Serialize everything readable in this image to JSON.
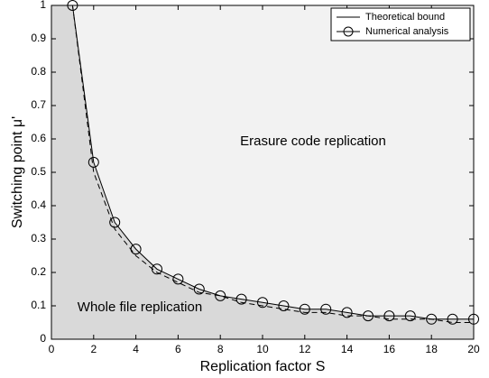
{
  "chart_data": {
    "type": "line",
    "x_label": "Replication factor S",
    "y_label": "Switching point μ'",
    "x": [
      1,
      2,
      3,
      4,
      5,
      6,
      7,
      8,
      9,
      10,
      11,
      12,
      13,
      14,
      15,
      16,
      17,
      18,
      19,
      20
    ],
    "series": [
      {
        "name": "Theoretical bound",
        "color": "#000000",
        "linestyle": "dashed",
        "marker": "none",
        "values": [
          1,
          0.5,
          0.33,
          0.25,
          0.2,
          0.17,
          0.14,
          0.13,
          0.11,
          0.1,
          0.09,
          0.08,
          0.08,
          0.07,
          0.07,
          0.06,
          0.06,
          0.06,
          0.05,
          0.05
        ]
      },
      {
        "name": "Numerical analysis",
        "color": "#000000",
        "linestyle": "solid",
        "marker": "circle",
        "values": [
          1,
          0.53,
          0.35,
          0.27,
          0.21,
          0.18,
          0.15,
          0.13,
          0.12,
          0.11,
          0.1,
          0.09,
          0.09,
          0.08,
          0.07,
          0.07,
          0.07,
          0.06,
          0.06,
          0.06
        ]
      }
    ],
    "annotations": [
      "Erasure code replication",
      "Whole file replication"
    ],
    "background_color": "#f2f2f2",
    "fill_below_color": "#d9d9d9",
    "xlim": [
      0,
      20
    ],
    "xticks": [
      0,
      2,
      4,
      6,
      8,
      10,
      12,
      14,
      16,
      18,
      20
    ],
    "ylim": [
      0,
      1
    ],
    "yticks": [
      0,
      0.1,
      0.2,
      0.3,
      0.4,
      0.5,
      0.6,
      0.7,
      0.8,
      0.9,
      1
    ],
    "grid": false,
    "legend": "upper right"
  }
}
